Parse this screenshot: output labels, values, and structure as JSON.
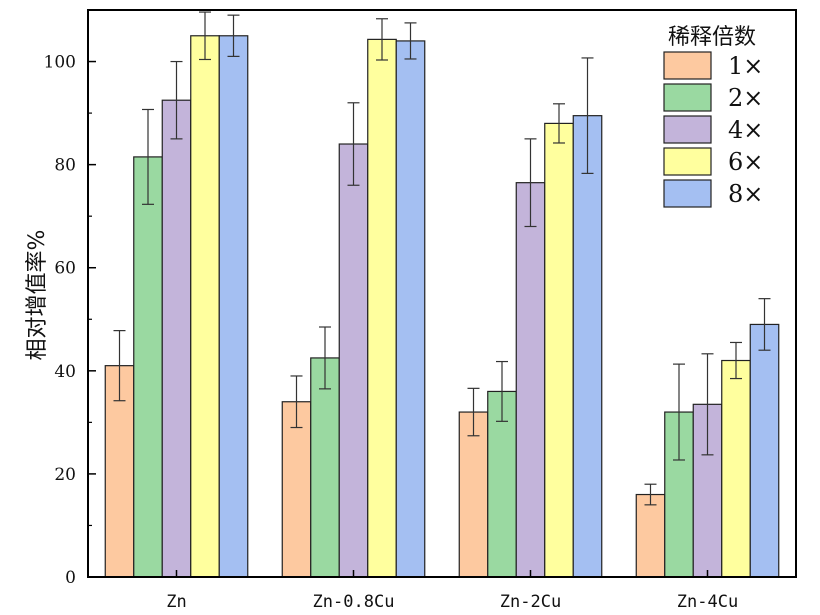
{
  "chart_data": {
    "type": "bar",
    "categories": [
      "Zn",
      "Zn-0.8Cu",
      "Zn-2Cu",
      "Zn-4Cu"
    ],
    "ylabel": "相对增值率%",
    "xlabel": "",
    "ylim": [
      0,
      110
    ],
    "yticks": [
      0,
      20,
      40,
      60,
      80,
      100
    ],
    "grid": false,
    "legend": {
      "title": "稀释倍数",
      "placement": "top-right"
    },
    "series": [
      {
        "name": "1×",
        "color": "#FDC9A0",
        "values": [
          41,
          34,
          32,
          16
        ],
        "errors": [
          6.8,
          5,
          4.6,
          2
        ]
      },
      {
        "name": "2×",
        "color": "#9AD9A1",
        "values": [
          81.5,
          42.5,
          36,
          32
        ],
        "errors": [
          9.2,
          6,
          5.8,
          9.3
        ]
      },
      {
        "name": "4×",
        "color": "#C3B4DA",
        "values": [
          92.5,
          84,
          76.5,
          33.5
        ],
        "errors": [
          7.5,
          8,
          8.5,
          9.8
        ]
      },
      {
        "name": "6×",
        "color": "#FFFF9E",
        "values": [
          105,
          104.3,
          88,
          42
        ],
        "errors": [
          4.6,
          4,
          3.8,
          3.5
        ]
      },
      {
        "name": "8×",
        "color": "#A4BFF2",
        "values": [
          105,
          104,
          89.5,
          49
        ],
        "errors": [
          4,
          3.5,
          11.2,
          5
        ]
      }
    ]
  }
}
